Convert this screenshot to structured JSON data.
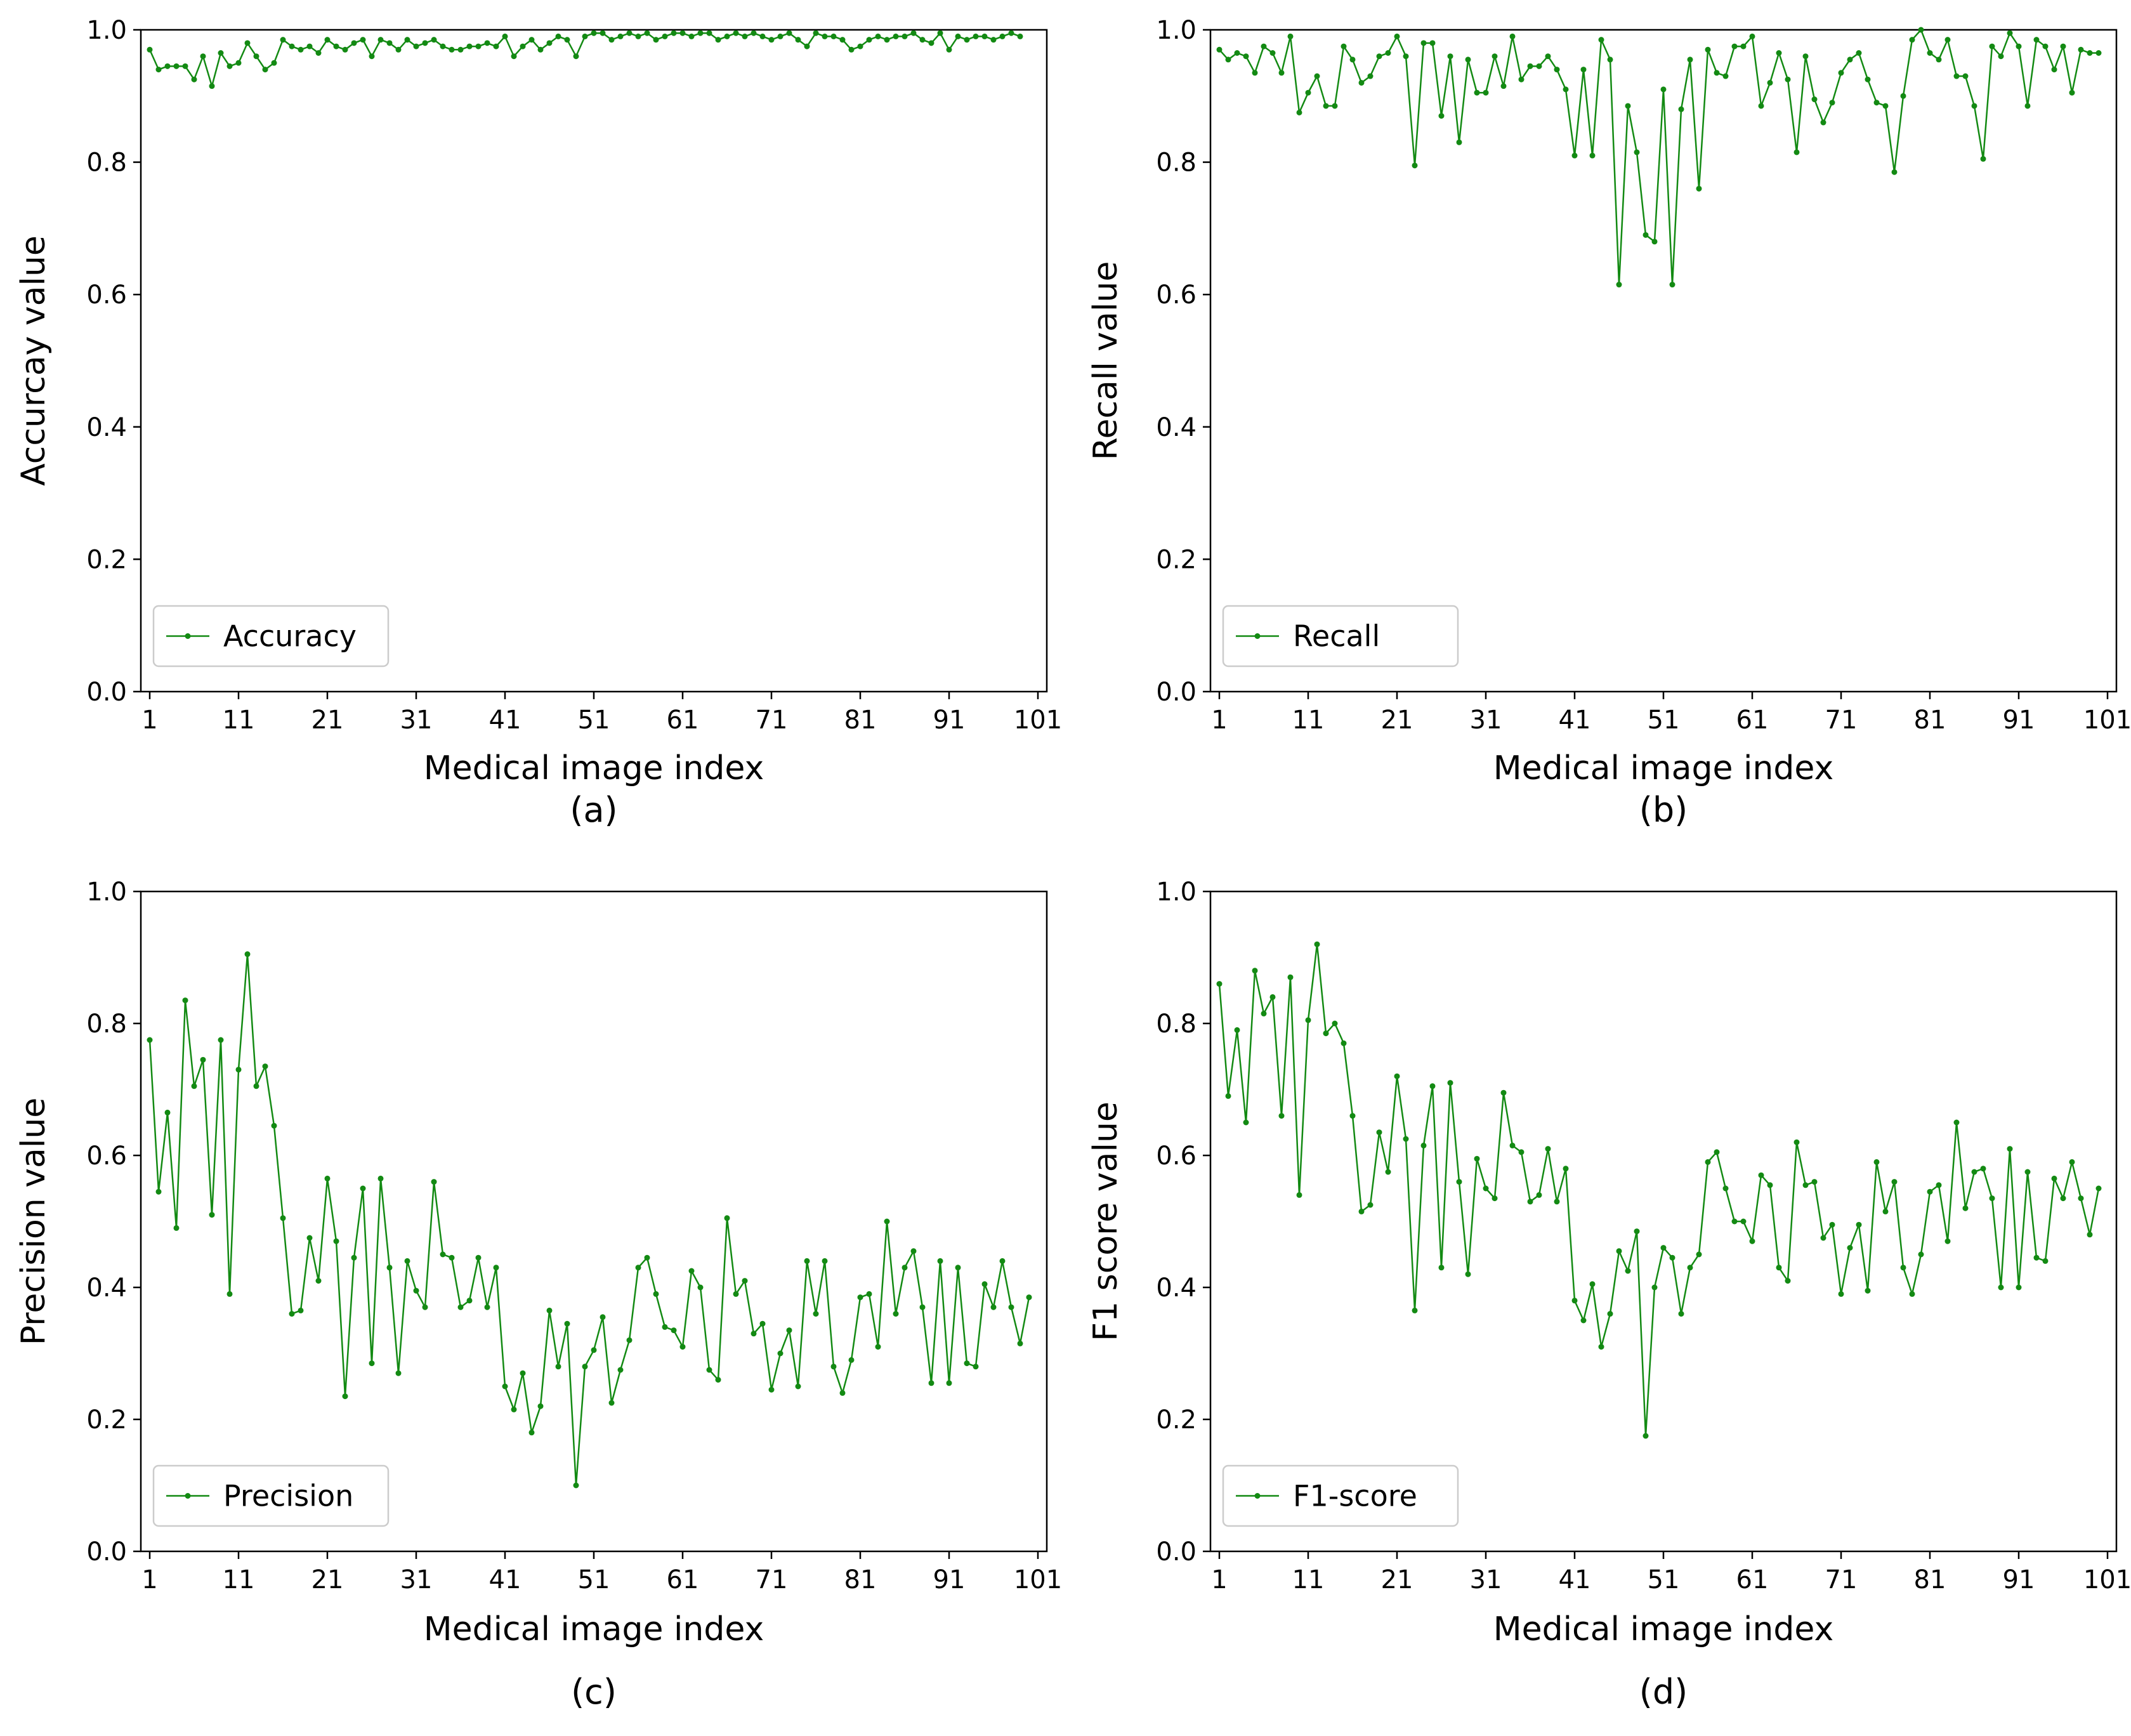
{
  "colors": {
    "series": "#138a13",
    "axis": "#000000",
    "background": "#ffffff",
    "legend_border": "#cccccc"
  },
  "chart_data": [
    {
      "type": "line",
      "caption": "(a)",
      "xlabel": "Medical image index",
      "ylabel": "Accurcay value",
      "legend": "Accuracy",
      "legend_position": "lower-left",
      "xlim": [
        0,
        102
      ],
      "ylim": [
        0,
        1
      ],
      "xticks": [
        1,
        11,
        21,
        31,
        41,
        51,
        61,
        71,
        81,
        91,
        101
      ],
      "xtick_labels": [
        "1",
        "11",
        "21",
        "31",
        "41",
        "51",
        "61",
        "71",
        "81",
        "91",
        "101"
      ],
      "yticks": [
        0,
        0.2,
        0.4,
        0.6,
        0.8,
        1.0
      ],
      "ytick_labels": [
        "0.0",
        "0.2",
        "0.4",
        "0.6",
        "0.8",
        "1.0"
      ],
      "x_start": 1,
      "values": [
        0.97,
        0.94,
        0.945,
        0.945,
        0.945,
        0.925,
        0.96,
        0.915,
        0.965,
        0.945,
        0.95,
        0.98,
        0.96,
        0.94,
        0.95,
        0.985,
        0.975,
        0.97,
        0.975,
        0.965,
        0.985,
        0.975,
        0.97,
        0.98,
        0.985,
        0.96,
        0.985,
        0.98,
        0.97,
        0.985,
        0.975,
        0.98,
        0.985,
        0.975,
        0.97,
        0.97,
        0.975,
        0.975,
        0.98,
        0.975,
        0.99,
        0.96,
        0.975,
        0.985,
        0.97,
        0.98,
        0.99,
        0.985,
        0.96,
        0.99,
        0.995,
        0.995,
        0.985,
        0.99,
        0.995,
        0.99,
        0.995,
        0.985,
        0.99,
        0.995,
        0.995,
        0.99,
        0.995,
        0.995,
        0.985,
        0.99,
        0.995,
        0.99,
        0.995,
        0.99,
        0.985,
        0.99,
        0.995,
        0.985,
        0.975,
        0.995,
        0.99,
        0.99,
        0.985,
        0.97,
        0.975,
        0.985,
        0.99,
        0.985,
        0.99,
        0.99,
        0.995,
        0.985,
        0.98,
        0.995,
        0.97,
        0.99,
        0.985,
        0.99,
        0.99,
        0.985,
        0.99,
        0.995,
        0.99
      ]
    },
    {
      "type": "line",
      "caption": "(b)",
      "xlabel": "Medical image index",
      "ylabel": "Recall value",
      "legend": "Recall",
      "legend_position": "lower-left",
      "xlim": [
        0,
        102
      ],
      "ylim": [
        0,
        1
      ],
      "xticks": [
        1,
        11,
        21,
        31,
        41,
        51,
        61,
        71,
        81,
        91,
        101
      ],
      "xtick_labels": [
        "1",
        "11",
        "21",
        "31",
        "41",
        "51",
        "61",
        "71",
        "81",
        "91",
        "101"
      ],
      "yticks": [
        0,
        0.2,
        0.4,
        0.6,
        0.8,
        1.0
      ],
      "ytick_labels": [
        "0.0",
        "0.2",
        "0.4",
        "0.6",
        "0.8",
        "1.0"
      ],
      "x_start": 1,
      "values": [
        0.97,
        0.955,
        0.965,
        0.96,
        0.935,
        0.975,
        0.965,
        0.935,
        0.99,
        0.875,
        0.905,
        0.93,
        0.885,
        0.885,
        0.975,
        0.955,
        0.92,
        0.93,
        0.96,
        0.965,
        0.99,
        0.96,
        0.795,
        0.98,
        0.98,
        0.87,
        0.96,
        0.83,
        0.955,
        0.905,
        0.905,
        0.96,
        0.915,
        0.99,
        0.925,
        0.945,
        0.945,
        0.96,
        0.94,
        0.91,
        0.81,
        0.94,
        0.81,
        0.985,
        0.955,
        0.615,
        0.885,
        0.815,
        0.69,
        0.68,
        0.91,
        0.615,
        0.88,
        0.955,
        0.76,
        0.97,
        0.935,
        0.93,
        0.975,
        0.975,
        0.99,
        0.885,
        0.92,
        0.965,
        0.925,
        0.815,
        0.96,
        0.895,
        0.86,
        0.89,
        0.935,
        0.955,
        0.965,
        0.925,
        0.89,
        0.885,
        0.785,
        0.9,
        0.985,
        1.0,
        0.965,
        0.955,
        0.985,
        0.93,
        0.93,
        0.885,
        0.805,
        0.975,
        0.96,
        0.995,
        0.975,
        0.885,
        0.985,
        0.975,
        0.94,
        0.975,
        0.905,
        0.97,
        0.965,
        0.965
      ]
    },
    {
      "type": "line",
      "caption": "(c)",
      "xlabel": "Medical image index",
      "ylabel": "Precision value",
      "legend": "Precision",
      "legend_position": "lower-left",
      "xlim": [
        0,
        102
      ],
      "ylim": [
        0,
        1
      ],
      "xticks": [
        1,
        11,
        21,
        31,
        41,
        51,
        61,
        71,
        81,
        91,
        101
      ],
      "xtick_labels": [
        "1",
        "11",
        "21",
        "31",
        "41",
        "51",
        "61",
        "71",
        "81",
        "91",
        "101"
      ],
      "yticks": [
        0,
        0.2,
        0.4,
        0.6,
        0.8,
        1.0
      ],
      "ytick_labels": [
        "0.0",
        "0.2",
        "0.4",
        "0.6",
        "0.8",
        "1.0"
      ],
      "x_start": 1,
      "values": [
        0.775,
        0.545,
        0.665,
        0.49,
        0.835,
        0.705,
        0.745,
        0.51,
        0.775,
        0.39,
        0.73,
        0.905,
        0.705,
        0.735,
        0.645,
        0.505,
        0.36,
        0.365,
        0.475,
        0.41,
        0.565,
        0.47,
        0.235,
        0.445,
        0.55,
        0.285,
        0.565,
        0.43,
        0.27,
        0.44,
        0.395,
        0.37,
        0.56,
        0.45,
        0.445,
        0.37,
        0.38,
        0.445,
        0.37,
        0.43,
        0.25,
        0.215,
        0.27,
        0.18,
        0.22,
        0.365,
        0.28,
        0.345,
        0.1,
        0.28,
        0.305,
        0.355,
        0.225,
        0.275,
        0.32,
        0.43,
        0.445,
        0.39,
        0.34,
        0.335,
        0.31,
        0.425,
        0.4,
        0.275,
        0.26,
        0.505,
        0.39,
        0.41,
        0.33,
        0.345,
        0.245,
        0.3,
        0.335,
        0.25,
        0.44,
        0.36,
        0.44,
        0.28,
        0.24,
        0.29,
        0.385,
        0.39,
        0.31,
        0.5,
        0.36,
        0.43,
        0.455,
        0.37,
        0.255,
        0.44,
        0.255,
        0.43,
        0.285,
        0.28,
        0.405,
        0.37,
        0.44,
        0.37,
        0.315,
        0.385
      ]
    },
    {
      "type": "line",
      "caption": "(d)",
      "xlabel": "Medical image index",
      "ylabel": "F1 score  value",
      "legend": "F1-score",
      "legend_position": "lower-left",
      "xlim": [
        0,
        102
      ],
      "ylim": [
        0,
        1
      ],
      "xticks": [
        1,
        11,
        21,
        31,
        41,
        51,
        61,
        71,
        81,
        91,
        101
      ],
      "xtick_labels": [
        "1",
        "11",
        "21",
        "31",
        "41",
        "51",
        "61",
        "71",
        "81",
        "91",
        "101"
      ],
      "yticks": [
        0,
        0.2,
        0.4,
        0.6,
        0.8,
        1.0
      ],
      "ytick_labels": [
        "0.0",
        "0.2",
        "0.4",
        "0.6",
        "0.8",
        "1.0"
      ],
      "x_start": 1,
      "values": [
        0.86,
        0.69,
        0.79,
        0.65,
        0.88,
        0.815,
        0.84,
        0.66,
        0.87,
        0.54,
        0.805,
        0.92,
        0.785,
        0.8,
        0.77,
        0.66,
        0.515,
        0.525,
        0.635,
        0.575,
        0.72,
        0.625,
        0.365,
        0.615,
        0.705,
        0.43,
        0.71,
        0.56,
        0.42,
        0.595,
        0.55,
        0.535,
        0.695,
        0.615,
        0.605,
        0.53,
        0.54,
        0.61,
        0.53,
        0.58,
        0.38,
        0.35,
        0.405,
        0.31,
        0.36,
        0.455,
        0.425,
        0.485,
        0.175,
        0.4,
        0.46,
        0.445,
        0.36,
        0.43,
        0.45,
        0.59,
        0.605,
        0.55,
        0.5,
        0.5,
        0.47,
        0.57,
        0.555,
        0.43,
        0.41,
        0.62,
        0.555,
        0.56,
        0.475,
        0.495,
        0.39,
        0.46,
        0.495,
        0.395,
        0.59,
        0.515,
        0.56,
        0.43,
        0.39,
        0.45,
        0.545,
        0.555,
        0.47,
        0.65,
        0.52,
        0.575,
        0.58,
        0.535,
        0.4,
        0.61,
        0.4,
        0.575,
        0.445,
        0.44,
        0.565,
        0.535,
        0.59,
        0.535,
        0.48,
        0.55
      ]
    }
  ]
}
